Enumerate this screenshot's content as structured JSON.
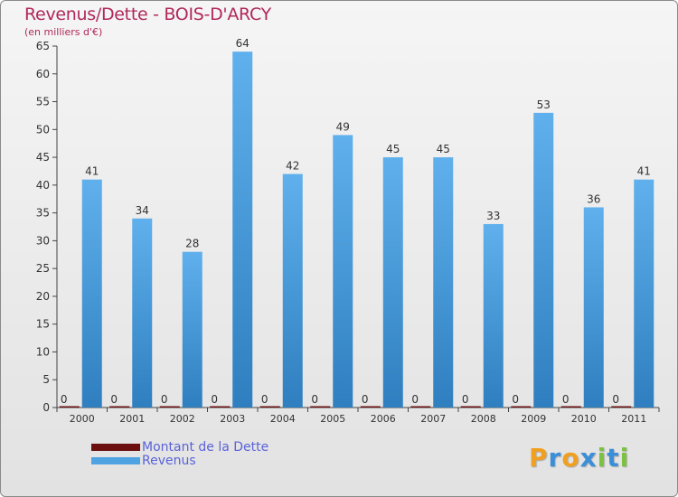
{
  "header": {
    "title": "Revenus/Dette - BOIS-D'ARCY",
    "subtitle": "(en milliers d'€)"
  },
  "chart_data": {
    "type": "bar",
    "title": "Revenus/Dette - BOIS-D'ARCY",
    "ylabel": "(en milliers d'€)",
    "xlabel": "",
    "ylim": [
      0,
      65
    ],
    "yticks": [
      0,
      5,
      10,
      15,
      20,
      25,
      30,
      35,
      40,
      45,
      50,
      55,
      60,
      65
    ],
    "grid": false,
    "legend_position": "bottom-left",
    "categories": [
      "2000",
      "2001",
      "2002",
      "2003",
      "2004",
      "2005",
      "2006",
      "2007",
      "2008",
      "2009",
      "2010",
      "2011"
    ],
    "series": [
      {
        "name": "Montant de la Dette",
        "color": "#6b0f0f",
        "values": [
          0,
          0,
          0,
          0,
          0,
          0,
          0,
          0,
          0,
          0,
          0,
          0
        ]
      },
      {
        "name": "Revenus",
        "color": "#4fa3e2",
        "values": [
          41,
          34,
          28,
          64,
          42,
          49,
          45,
          45,
          33,
          53,
          36,
          41
        ]
      }
    ]
  },
  "legend": {
    "items": [
      {
        "label": "Montant de la Dette",
        "color": "#6b0f0f"
      },
      {
        "label": "Revenus",
        "color": "#4fa3e2"
      }
    ]
  },
  "logo": {
    "letters": [
      "P",
      "r",
      "o",
      "x",
      "i",
      "t",
      "i"
    ],
    "colors": [
      "#f0a020",
      "#3a8fd8",
      "#f0a020",
      "#3a8fd8",
      "#7cc242",
      "#3a8fd8",
      "#7cc242"
    ]
  }
}
